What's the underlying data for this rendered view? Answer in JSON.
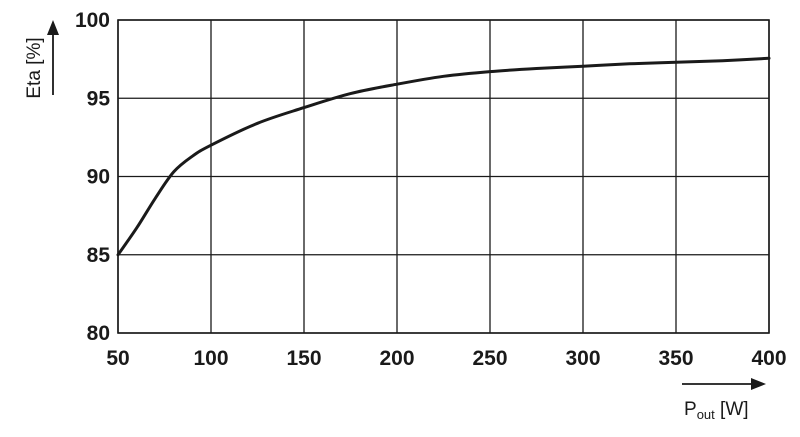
{
  "chart_data": {
    "type": "line",
    "title": "",
    "ylabel": "Eta [%]",
    "xlabel_main": "P",
    "xlabel_sub": "out",
    "xlabel_unit": " [W]",
    "xlim": [
      50,
      400
    ],
    "ylim": [
      80,
      100
    ],
    "xticks": [
      50,
      100,
      150,
      200,
      250,
      300,
      350,
      400
    ],
    "yticks": [
      80,
      85,
      90,
      95,
      100
    ],
    "grid": true,
    "legend": "none",
    "series": [
      {
        "x": [
          50,
          60,
          70,
          80,
          90,
          100,
          125,
          150,
          175,
          200,
          225,
          250,
          275,
          300,
          325,
          350,
          375,
          400
        ],
        "y": [
          85.0,
          86.7,
          88.6,
          90.3,
          91.3,
          92.0,
          93.4,
          94.4,
          95.3,
          95.9,
          96.4,
          96.7,
          96.9,
          97.05,
          97.2,
          97.3,
          97.4,
          97.55
        ]
      }
    ]
  }
}
